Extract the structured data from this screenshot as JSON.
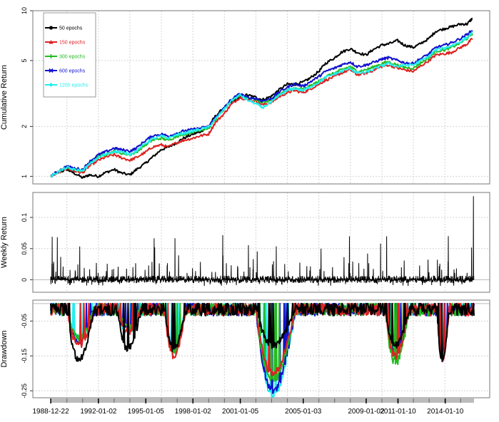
{
  "chart_data": [
    {
      "type": "line",
      "ylabel": "Cumulative Return",
      "yscale": "log",
      "ylim": [
        0.9,
        10
      ],
      "yticks": [
        1,
        2,
        5,
        10
      ],
      "grid": true,
      "legend_placement": "top-left",
      "x": [
        "1988-12-22",
        "1989-06",
        "1990-01",
        "1990-06",
        "1991-01",
        "1991-06",
        "1992-01",
        "1992-06",
        "1993-01",
        "1993-06",
        "1994-01",
        "1994-06",
        "1995-01",
        "1995-06",
        "1996-01",
        "1996-06",
        "1997-01",
        "1997-06",
        "1998-01",
        "1998-06",
        "1999-01",
        "1999-06",
        "2000-01",
        "2000-06",
        "2001-01",
        "2001-06",
        "2002-01",
        "2002-06",
        "2003-01",
        "2003-06",
        "2004-01",
        "2004-06",
        "2005-01",
        "2005-06",
        "2006-01",
        "2006-06",
        "2007-01",
        "2007-06",
        "2008-01",
        "2008-06",
        "2009-01",
        "2009-06",
        "2010-01",
        "2010-06",
        "2011-01",
        "2011-06",
        "2012-01",
        "2012-06",
        "2013-01",
        "2013-06",
        "2014-01",
        "2014-06",
        "2015-01",
        "2015-06",
        "2015-10"
      ],
      "series": [
        {
          "name": "50 epochs",
          "color": "#000000",
          "marker": "circle",
          "values": [
            1.0,
            1.05,
            1.1,
            1.05,
            0.98,
            1.02,
            1.0,
            1.05,
            1.1,
            1.05,
            1.02,
            1.1,
            1.2,
            1.3,
            1.45,
            1.5,
            1.6,
            1.7,
            1.8,
            1.85,
            2.0,
            2.3,
            2.6,
            2.8,
            3.0,
            3.1,
            3.0,
            2.9,
            3.05,
            3.3,
            3.6,
            3.6,
            3.7,
            3.9,
            4.3,
            4.8,
            5.2,
            5.6,
            5.9,
            5.6,
            5.4,
            5.8,
            6.2,
            6.3,
            6.6,
            6.2,
            6.0,
            6.3,
            6.8,
            7.5,
            7.8,
            8.0,
            8.3,
            8.3,
            9.0
          ]
        },
        {
          "name": "150 epochs",
          "color": "#dd2222",
          "marker": "triangle",
          "values": [
            1.0,
            1.05,
            1.12,
            1.08,
            1.05,
            1.15,
            1.25,
            1.3,
            1.35,
            1.3,
            1.25,
            1.3,
            1.4,
            1.5,
            1.55,
            1.5,
            1.6,
            1.65,
            1.7,
            1.75,
            1.8,
            2.1,
            2.4,
            2.7,
            3.0,
            2.9,
            2.85,
            2.7,
            2.8,
            3.0,
            3.2,
            3.3,
            3.2,
            3.35,
            3.6,
            3.8,
            4.0,
            4.2,
            4.4,
            4.1,
            4.2,
            4.35,
            4.6,
            4.7,
            4.5,
            4.4,
            4.3,
            4.6,
            5.0,
            5.4,
            5.5,
            5.6,
            6.0,
            6.3,
            6.8
          ]
        },
        {
          "name": "300 epochs",
          "color": "#22bb22",
          "marker": "plus",
          "values": [
            1.0,
            1.06,
            1.14,
            1.1,
            1.08,
            1.2,
            1.32,
            1.35,
            1.42,
            1.38,
            1.35,
            1.4,
            1.55,
            1.65,
            1.7,
            1.65,
            1.75,
            1.8,
            1.85,
            1.9,
            1.95,
            2.2,
            2.55,
            2.85,
            3.1,
            3.0,
            2.9,
            2.8,
            2.9,
            3.1,
            3.3,
            3.4,
            3.35,
            3.5,
            3.75,
            4.0,
            4.2,
            4.4,
            4.6,
            4.3,
            4.4,
            4.55,
            4.8,
            4.9,
            4.7,
            4.55,
            4.5,
            4.8,
            5.2,
            5.7,
            5.8,
            6.0,
            6.4,
            6.8,
            7.3
          ]
        },
        {
          "name": "600 epochs",
          "color": "#1111cc",
          "marker": "cross",
          "values": [
            1.0,
            1.07,
            1.15,
            1.12,
            1.1,
            1.22,
            1.35,
            1.4,
            1.48,
            1.45,
            1.42,
            1.48,
            1.65,
            1.75,
            1.8,
            1.75,
            1.82,
            1.88,
            1.92,
            1.95,
            2.0,
            2.25,
            2.6,
            2.9,
            3.15,
            3.0,
            2.95,
            2.85,
            2.95,
            3.2,
            3.45,
            3.6,
            3.5,
            3.7,
            4.0,
            4.3,
            4.5,
            4.7,
            4.9,
            4.6,
            4.7,
            4.85,
            5.1,
            5.2,
            5.0,
            4.85,
            4.8,
            5.1,
            5.5,
            6.0,
            6.2,
            6.4,
            6.8,
            7.2,
            7.6
          ]
        },
        {
          "name": "1200 epochs",
          "color": "#22eeee",
          "marker": "diamond",
          "values": [
            1.0,
            1.06,
            1.13,
            1.1,
            1.08,
            1.18,
            1.3,
            1.35,
            1.42,
            1.4,
            1.36,
            1.42,
            1.58,
            1.68,
            1.75,
            1.7,
            1.78,
            1.82,
            1.88,
            1.92,
            1.98,
            2.2,
            2.55,
            2.85,
            3.1,
            2.9,
            2.75,
            2.6,
            2.8,
            3.05,
            3.3,
            3.4,
            3.3,
            3.45,
            3.7,
            3.95,
            4.15,
            4.3,
            4.5,
            4.2,
            4.25,
            4.4,
            4.65,
            4.8,
            4.6,
            4.7,
            4.7,
            4.95,
            5.3,
            5.8,
            5.95,
            6.15,
            6.5,
            6.9,
            7.4
          ]
        }
      ]
    },
    {
      "type": "bar",
      "ylabel": "Weekly Return",
      "ylim": [
        -0.02,
        0.14
      ],
      "yticks": [
        0.0,
        0.05,
        0.1
      ],
      "grid": true,
      "series": [
        {
          "color": "#000000"
        }
      ]
    },
    {
      "type": "area",
      "ylabel": "Drawdown",
      "ylim": [
        -0.27,
        0.01
      ],
      "yticks": [
        -0.05,
        -0.15,
        -0.25
      ],
      "grid": true,
      "xticks": [
        "1988-12-22",
        "1992-01-02",
        "1995-01-05",
        "1998-01-02",
        "2001-01-05",
        "2005-01-03",
        "2009-01-02",
        "2011-01-10",
        "2014-01-10"
      ],
      "minima": [
        {
          "start": 1990.0,
          "end": 1991.8,
          "values": [
            -0.16,
            -0.12,
            -0.1,
            -0.11,
            -0.1
          ]
        },
        {
          "start": 1993.2,
          "end": 1994.8,
          "values": [
            -0.13,
            -0.08,
            -0.07,
            -0.075,
            -0.08
          ]
        },
        {
          "start": 1996.2,
          "end": 1997.6,
          "values": [
            -0.13,
            -0.15,
            -0.14,
            -0.13,
            -0.13
          ]
        },
        {
          "start": 2002.0,
          "end": 2004.6,
          "values": [
            -0.12,
            -0.2,
            -0.22,
            -0.25,
            -0.26
          ]
        },
        {
          "start": 2010.2,
          "end": 2011.8,
          "values": [
            -0.12,
            -0.15,
            -0.17,
            -0.14,
            -0.1
          ]
        },
        {
          "start": 2013.5,
          "end": 2014.3,
          "values": [
            -0.16,
            -0.16,
            -0.15,
            -0.16,
            -0.14
          ]
        }
      ]
    }
  ]
}
